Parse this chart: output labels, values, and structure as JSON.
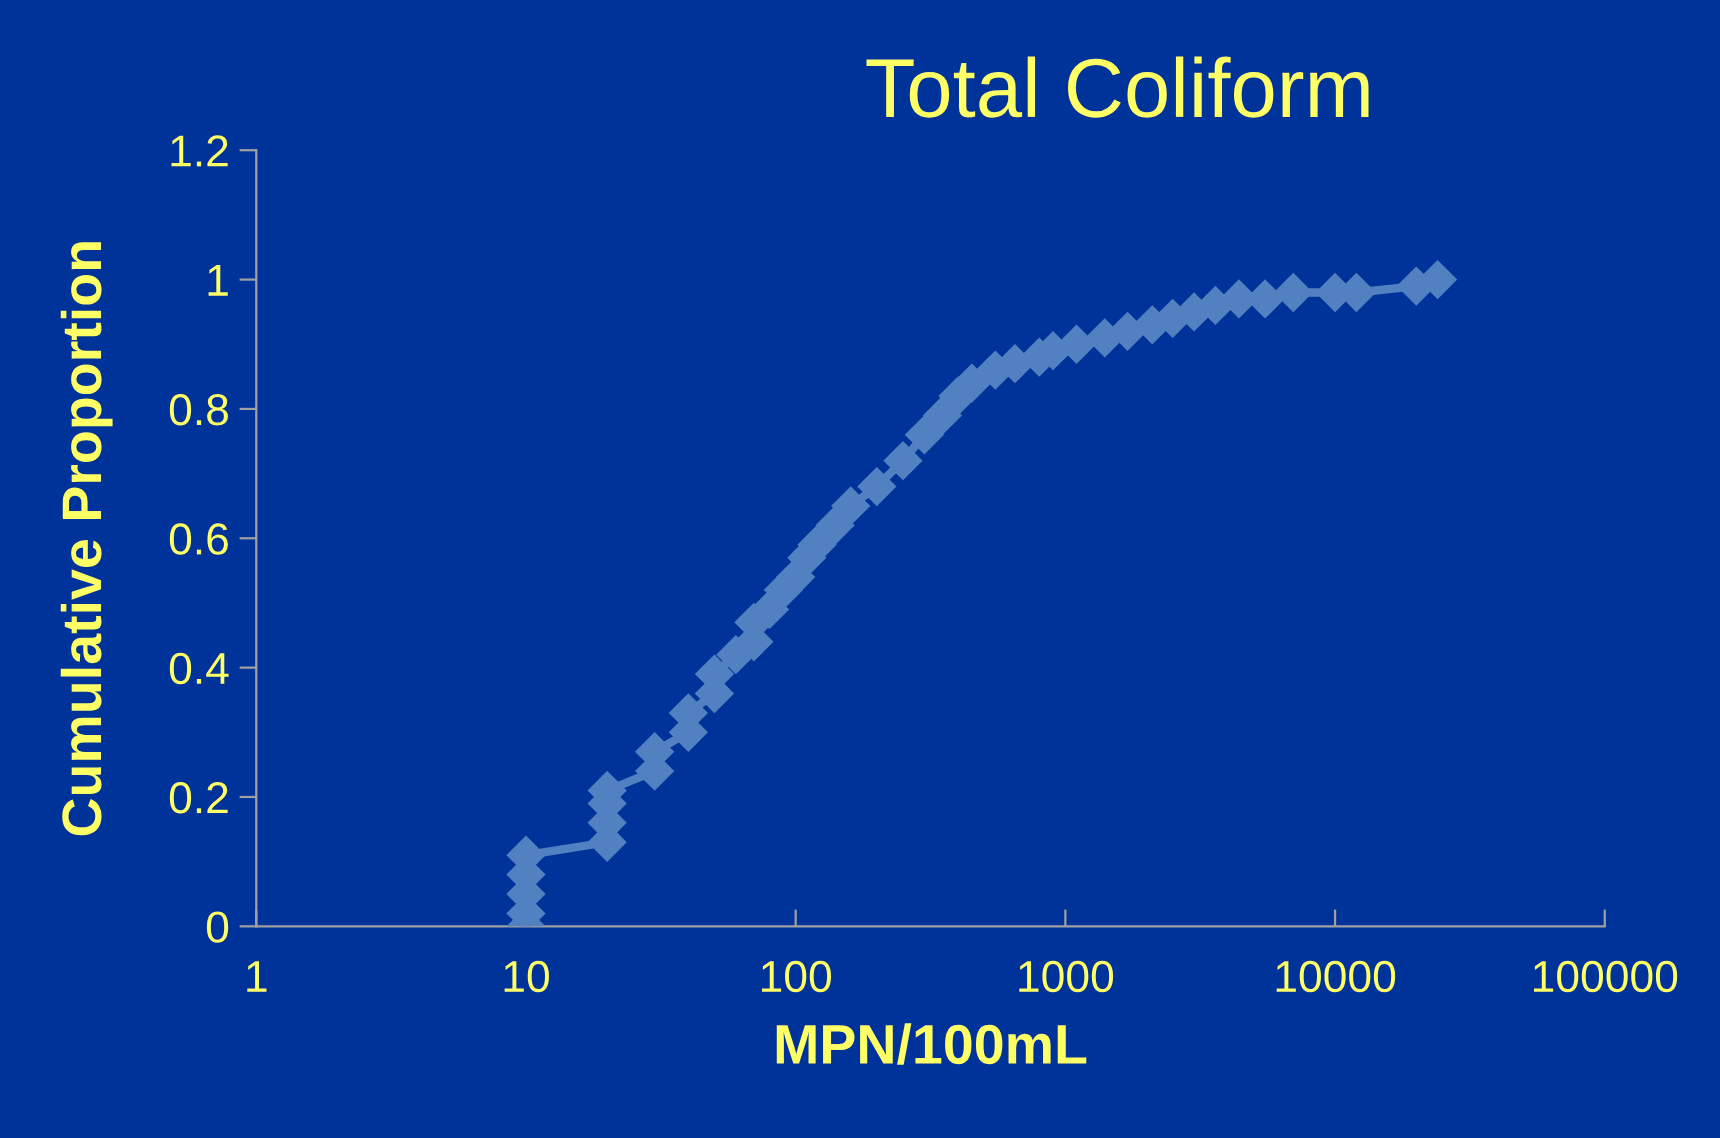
{
  "chart_data": {
    "type": "line",
    "title": "Total Coliform",
    "xlabel": "MPN/100mL",
    "ylabel": "Cumulative Proportion",
    "log": "x",
    "marker": "diamond",
    "line_style": "solid",
    "grid": false,
    "legend": false,
    "xlim": [
      1,
      100000
    ],
    "xticks": [
      1,
      10,
      100,
      1000,
      10000,
      100000
    ],
    "ylim": [
      0,
      1.2
    ],
    "yticks": [
      0,
      {
        "value": 0.2,
        "label": "0.2"
      },
      {
        "value": 0.4,
        "label": "0.4"
      },
      {
        "value": 0.6,
        "label": "0.6"
      },
      {
        "value": 0.8,
        "label": "0.8"
      },
      1,
      {
        "value": 1.2,
        "label": "1.2"
      }
    ],
    "x": [
      10,
      10,
      10,
      10,
      10,
      20,
      20,
      20,
      20,
      30,
      30,
      40,
      40,
      50,
      50,
      60,
      70,
      70,
      80,
      90,
      100,
      110,
      120,
      140,
      160,
      200,
      250,
      300,
      350,
      400,
      450,
      550,
      650,
      800,
      900,
      1100,
      1400,
      1700,
      2100,
      2500,
      3000,
      3600,
      4400,
      5500,
      7000,
      10000,
      12000,
      20000,
      24000
    ],
    "series": [
      {
        "color": "#5181c0",
        "values": [
          0.0,
          0.02,
          0.05,
          0.08,
          0.11,
          0.13,
          0.16,
          0.19,
          0.21,
          0.24,
          0.27,
          0.3,
          0.33,
          0.36,
          0.39,
          0.42,
          0.44,
          0.47,
          0.49,
          0.52,
          0.54,
          0.57,
          0.59,
          0.62,
          0.65,
          0.68,
          0.72,
          0.76,
          0.79,
          0.82,
          0.84,
          0.86,
          0.87,
          0.88,
          0.89,
          0.9,
          0.91,
          0.92,
          0.93,
          0.94,
          0.95,
          0.96,
          0.97,
          0.97,
          0.98,
          0.98,
          0.98,
          0.99,
          1.0
        ]
      }
    ]
  }
}
